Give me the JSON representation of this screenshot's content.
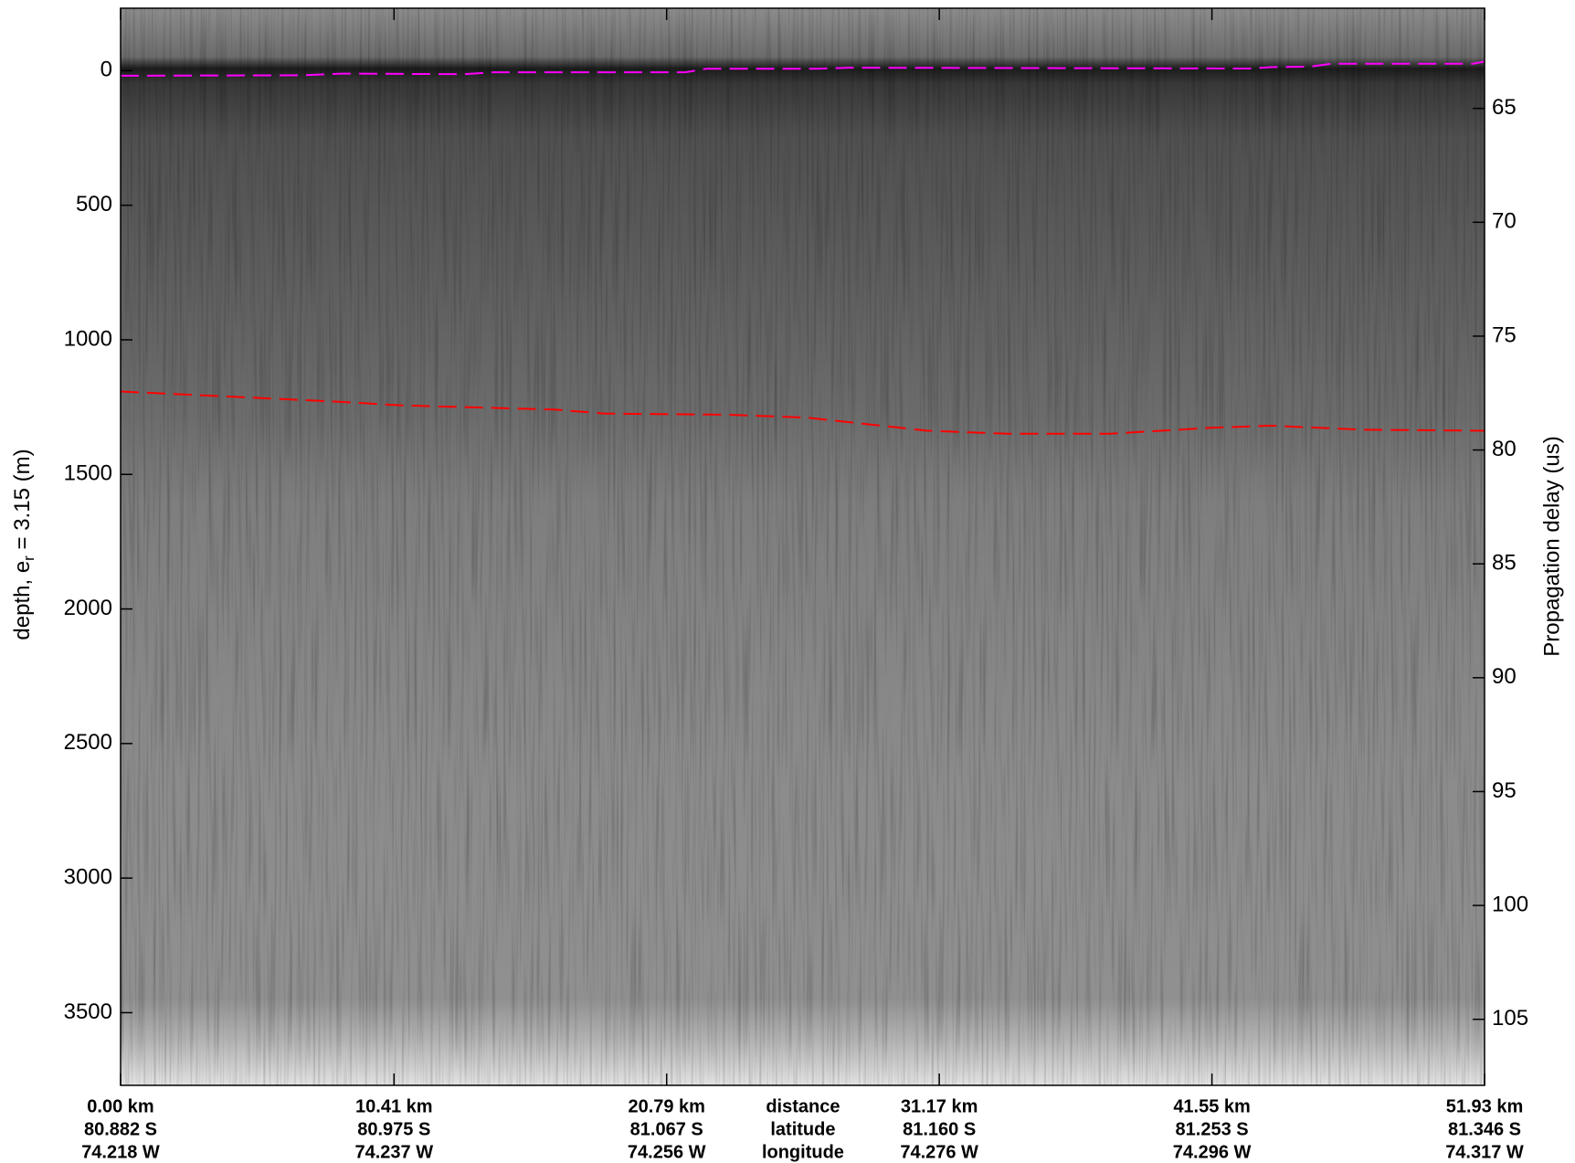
{
  "chart_data": {
    "type": "echogram",
    "xlim": [
      0,
      51.93
    ],
    "xticks": [
      {
        "value": 0,
        "label": "0.00 km"
      },
      {
        "value": 10.41,
        "label": "10.41 km"
      },
      {
        "value": 20.79,
        "label": "20.79 km"
      },
      {
        "value": 31.17,
        "label": "31.17 km"
      },
      {
        "value": 41.55,
        "label": "41.55 km"
      },
      {
        "value": 51.93,
        "label": "51.93 km"
      }
    ],
    "latitude_labels": [
      "80.882 S",
      "80.975 S",
      "81.067 S",
      "81.160 S",
      "81.253 S",
      "81.346 S"
    ],
    "longitude_labels": [
      "74.218 W",
      "74.237 W",
      "74.256 W",
      "74.276 W",
      "74.296 W",
      "74.317 W"
    ],
    "x_axis_labels": [
      "distance",
      "latitude",
      "longitude"
    ],
    "ylabel": [
      "depth, e",
      "r",
      " = 3.15 (m)"
    ],
    "ylim": [
      -232,
      3770
    ],
    "y_inverted": true,
    "yticks": [
      0,
      500,
      1000,
      1500,
      2000,
      2500,
      3000,
      3500
    ],
    "y2label": "Propagation delay (us)",
    "y2lim": [
      60.6,
      107.9
    ],
    "y2ticks": [
      65,
      70,
      75,
      80,
      85,
      90,
      95,
      100,
      105
    ],
    "series": [
      {
        "name": "surface",
        "color": "#ff00ff",
        "x": [
          0,
          6.9,
          8.45,
          13.1,
          14.2,
          21.5,
          22.3,
          26.5,
          27.7,
          43.0,
          43.8,
          45.3,
          46.1,
          51.5,
          51.93
        ],
        "values": [
          19,
          17,
          11,
          13,
          6,
          6,
          -7,
          -7,
          -11,
          -8,
          -13,
          -15,
          -26,
          -26,
          -34
        ]
      },
      {
        "name": "bed",
        "color": "#ff0000",
        "x": [
          0,
          8.07,
          10.75,
          16.52,
          18.44,
          23.05,
          26.12,
          30.73,
          33.8,
          37.64,
          41.48,
          43.79,
          47.25,
          51.93
        ],
        "values": [
          1192,
          1229,
          1244,
          1259,
          1274,
          1278,
          1289,
          1338,
          1349,
          1349,
          1327,
          1319,
          1334,
          1338
        ]
      }
    ]
  }
}
